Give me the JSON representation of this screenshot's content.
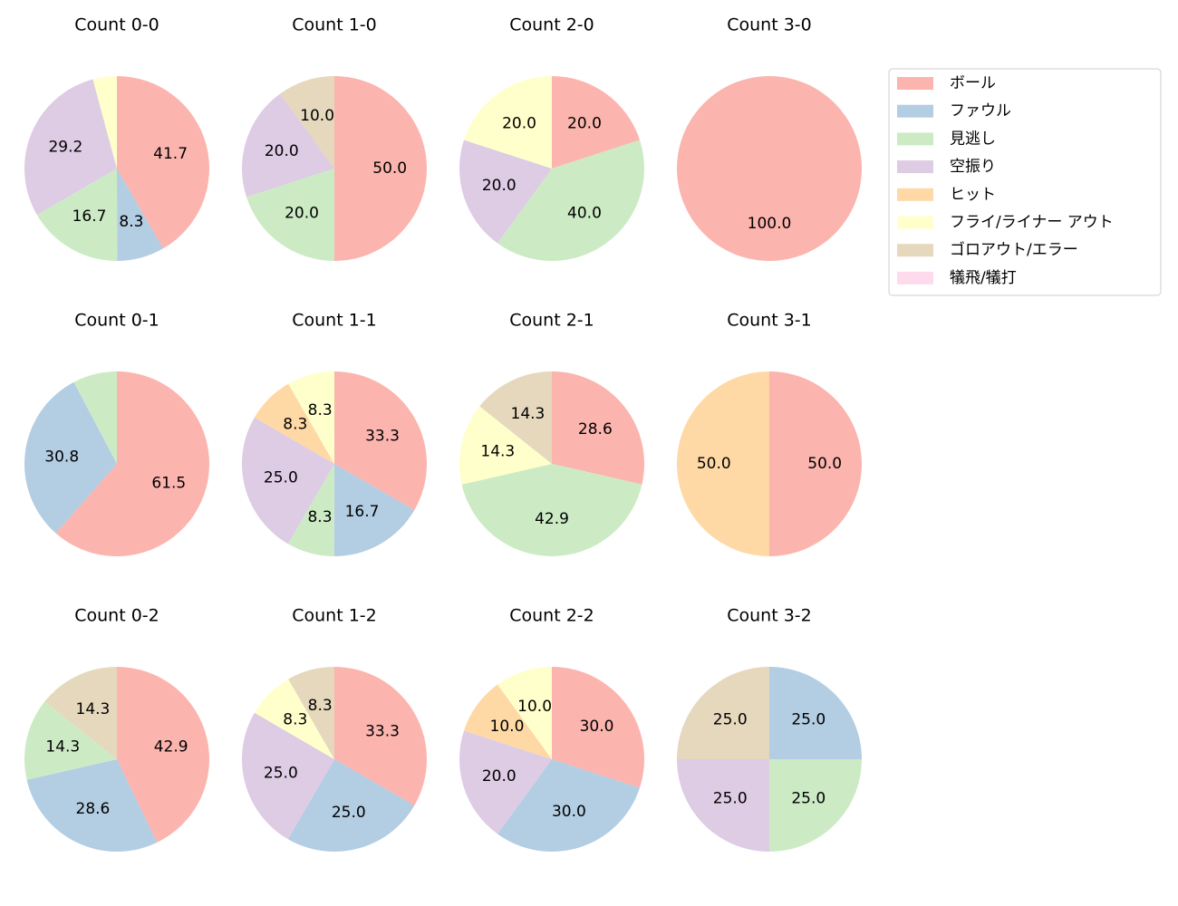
{
  "chart_data": [
    {
      "type": "pie",
      "title": "Count 0-0",
      "values": [
        41.7,
        8.3,
        16.7,
        29.2,
        0,
        4.2,
        0,
        0
      ],
      "value_labels": [
        "41.7",
        "8.3",
        "16.7",
        "29.2",
        null,
        null,
        null,
        null
      ]
    },
    {
      "type": "pie",
      "title": "Count 1-0",
      "values": [
        50,
        0,
        20,
        20,
        0,
        0,
        10,
        0
      ],
      "value_labels": [
        "50.0",
        null,
        "20.0",
        "20.0",
        null,
        null,
        "10.0",
        null
      ]
    },
    {
      "type": "pie",
      "title": "Count 2-0",
      "values": [
        20,
        0,
        40,
        20,
        0,
        20,
        0,
        0
      ],
      "value_labels": [
        "20.0",
        null,
        "40.0",
        "20.0",
        null,
        "20.0",
        null,
        null
      ]
    },
    {
      "type": "pie",
      "title": "Count 3-0",
      "values": [
        100,
        0,
        0,
        0,
        0,
        0,
        0,
        0
      ],
      "value_labels": [
        "100.0",
        null,
        null,
        null,
        null,
        null,
        null,
        null
      ]
    },
    {
      "type": "pie",
      "title": "Count 0-1",
      "values": [
        61.5,
        30.8,
        7.7,
        0,
        0,
        0,
        0,
        0
      ],
      "value_labels": [
        "61.5",
        "30.8",
        null,
        null,
        null,
        null,
        null,
        null
      ]
    },
    {
      "type": "pie",
      "title": "Count 1-1",
      "values": [
        33.3,
        16.7,
        8.3,
        25.0,
        8.3,
        8.3,
        0,
        0
      ],
      "value_labels": [
        "33.3",
        "16.7",
        "8.3",
        "25.0",
        "8.3",
        "8.3",
        null,
        null
      ]
    },
    {
      "type": "pie",
      "title": "Count 2-1",
      "values": [
        28.6,
        0,
        42.9,
        0,
        0,
        14.3,
        14.3,
        0
      ],
      "value_labels": [
        "28.6",
        null,
        "42.9",
        null,
        null,
        "14.3",
        "14.3",
        null
      ]
    },
    {
      "type": "pie",
      "title": "Count 3-1",
      "values": [
        50,
        0,
        0,
        0,
        50,
        0,
        0,
        0
      ],
      "value_labels": [
        "50.0",
        null,
        null,
        null,
        "50.0",
        null,
        null,
        null
      ]
    },
    {
      "type": "pie",
      "title": "Count 0-2",
      "values": [
        42.9,
        28.6,
        14.3,
        0,
        0,
        0,
        14.3,
        0
      ],
      "value_labels": [
        "42.9",
        "28.6",
        "14.3",
        null,
        null,
        null,
        "14.3",
        null
      ]
    },
    {
      "type": "pie",
      "title": "Count 1-2",
      "values": [
        33.3,
        25.0,
        0,
        25.0,
        0,
        8.3,
        8.3,
        0
      ],
      "value_labels": [
        "33.3",
        "25.0",
        null,
        "25.0",
        null,
        "8.3",
        "8.3",
        null
      ]
    },
    {
      "type": "pie",
      "title": "Count 2-2",
      "values": [
        30,
        30,
        0,
        20,
        10,
        10,
        0,
        0
      ],
      "value_labels": [
        "30.0",
        "30.0",
        null,
        "20.0",
        "10.0",
        "10.0",
        null,
        null
      ]
    },
    {
      "type": "pie",
      "title": "Count 3-2",
      "values": [
        0,
        25,
        25,
        25,
        0,
        0,
        25,
        0
      ],
      "value_labels": [
        null,
        "25.0",
        "25.0",
        "25.0",
        null,
        null,
        "25.0",
        null
      ]
    }
  ],
  "legend": {
    "loc": "upper right",
    "categories": [
      "ボール",
      "ファウル",
      "見逃し",
      "空振り",
      "ヒット",
      "フライ/ライナー アウト",
      "ゴロアウト/エラー",
      "犠飛/犠打"
    ],
    "colors": [
      "#fbb4ae",
      "#b3cde3",
      "#ccebc5",
      "#decbe4",
      "#fed9a6",
      "#ffffcc",
      "#e5d8bd",
      "#fddaec"
    ]
  }
}
